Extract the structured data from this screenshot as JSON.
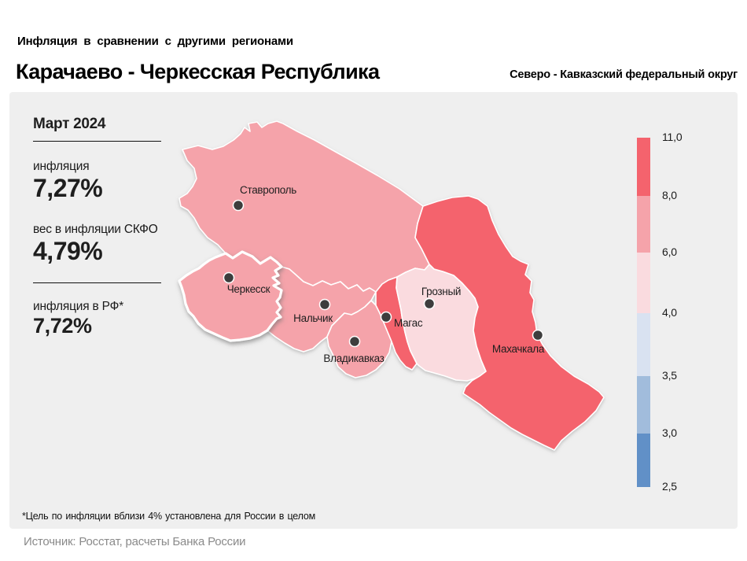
{
  "header": {
    "kicker": "Инфляция  в сравнении  с другими  регионами",
    "title": "Карачаево - Черкесская Республика",
    "district": "Северо - Кавказский федеральный округ"
  },
  "stats": {
    "period": "Март 2024",
    "inflation_label": "инфляция",
    "inflation_value": "7,27%",
    "weight_label": "вес в инфляции  СКФО",
    "weight_value": "4,79%",
    "rf_label": "инфляция  в РФ*",
    "rf_value": "7,72%"
  },
  "map": {
    "regions": [
      {
        "id": "stavropol",
        "capital": "Ставрополь",
        "color": "#f5a3aa",
        "bucket": "6,0–8,0"
      },
      {
        "id": "kabardino-balkaria",
        "capital": "Нальчик",
        "color": "#f5a3aa",
        "bucket": "6,0–8,0"
      },
      {
        "id": "north-ossetia",
        "capital": "Владикавказ",
        "color": "#f5a3aa",
        "bucket": "6,0–8,0"
      },
      {
        "id": "ingushetia",
        "capital": "Магас",
        "color": "#f4636d",
        "bucket": "8,0–11,0"
      },
      {
        "id": "chechnya",
        "capital": "Грозный",
        "color": "#fadbdf",
        "bucket": "4,0–6,0"
      },
      {
        "id": "dagestan",
        "capital": "Махачкала",
        "color": "#f4636d",
        "bucket": "8,0–11,0"
      },
      {
        "id": "karachay-cherkessia",
        "capital": "Черкесск",
        "color": "#f5a3aa",
        "bucket": "6,0–8,0",
        "selected": true
      }
    ],
    "cities": [
      {
        "name": "Ставрополь",
        "dot": [
          303,
          261
        ],
        "label": [
          341,
          246
        ],
        "anchor": "middle"
      },
      {
        "name": "Черкесск",
        "dot": [
          291,
          353
        ],
        "label": [
          316,
          372
        ],
        "anchor": "middle"
      },
      {
        "name": "Нальчик",
        "dot": [
          413,
          387
        ],
        "label": [
          398,
          409
        ],
        "anchor": "middle"
      },
      {
        "name": "Владикавказ",
        "dot": [
          451,
          434
        ],
        "label": [
          450,
          460
        ],
        "anchor": "middle"
      },
      {
        "name": "Магас",
        "dot": [
          491,
          403
        ],
        "label": [
          501,
          415
        ],
        "anchor": "start"
      },
      {
        "name": "Грозный",
        "dot": [
          546,
          386
        ],
        "label": [
          561,
          375
        ],
        "anchor": "middle"
      },
      {
        "name": "Махачкала",
        "dot": [
          684,
          426
        ],
        "label": [
          659,
          448
        ],
        "anchor": "middle"
      }
    ],
    "dot_color": "#3d3d3d"
  },
  "legend": {
    "labels": [
      "11,0",
      "8,0",
      "6,0",
      "4,0",
      "3,5",
      "3,0",
      "2,5"
    ],
    "colors": [
      "#f4636d",
      "#f5a3aa",
      "#fadbdf",
      "#d9e2f1",
      "#a1bcdc",
      "#6190c7"
    ]
  },
  "footnote": {
    "text": "*Цель по инфляции вблизи 4% установлена для России в  целом"
  },
  "source": {
    "text": "Источник: Росстат, расчеты Банка России"
  },
  "chart_data": {
    "type": "heatmap",
    "subtype": "choropleth-map",
    "title": "Инфляция в сравнении с другими регионами",
    "region": "Карачаево - Черкесская Республика",
    "district": "Северо - Кавказский федеральный округ",
    "period": "Март 2024",
    "values": {
      "инфляция_%": 7.27,
      "вес_в_инфляции_СКФО_%": 4.79,
      "инфляция_в_РФ_%": 7.72
    },
    "legend_bounds": [
      2.5,
      3.0,
      3.5,
      4.0,
      6.0,
      8.0,
      11.0
    ],
    "legend_position": "right",
    "regions_by_capital": [
      {
        "capital": "Ставрополь",
        "bucket": "6,0–8,0"
      },
      {
        "capital": "Черкесск",
        "bucket": "6,0–8,0",
        "selected": true
      },
      {
        "capital": "Нальчик",
        "bucket": "6,0–8,0"
      },
      {
        "capital": "Владикавказ",
        "bucket": "6,0–8,0"
      },
      {
        "capital": "Магас",
        "bucket": "8,0–11,0"
      },
      {
        "capital": "Грозный",
        "bucket": "4,0–6,0"
      },
      {
        "capital": "Махачкала",
        "bucket": "8,0–11,0"
      }
    ],
    "footnote": "*Цель по инфляции вблизи 4% установлена для России в целом",
    "source": "Источник: Росстат, расчеты Банка России"
  }
}
